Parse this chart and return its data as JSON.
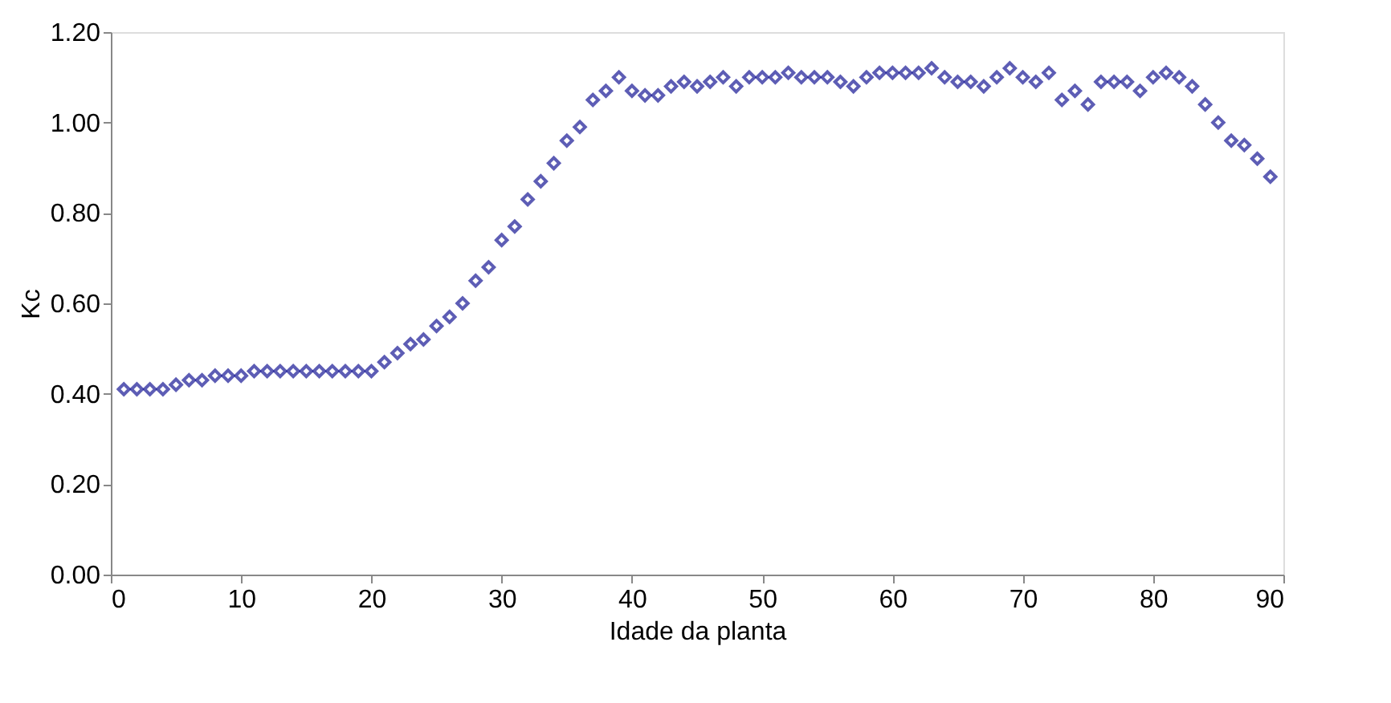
{
  "chart_data": {
    "type": "scatter",
    "xlabel": "Idade da planta",
    "ylabel": "Kc",
    "x": [
      1,
      2,
      3,
      4,
      5,
      6,
      7,
      8,
      9,
      10,
      11,
      12,
      13,
      14,
      15,
      16,
      17,
      18,
      19,
      20,
      21,
      22,
      23,
      24,
      25,
      26,
      27,
      28,
      29,
      30,
      31,
      32,
      33,
      34,
      35,
      36,
      37,
      38,
      39,
      40,
      41,
      42,
      43,
      44,
      45,
      46,
      47,
      48,
      49,
      50,
      51,
      52,
      53,
      54,
      55,
      56,
      57,
      58,
      59,
      60,
      61,
      62,
      63,
      64,
      65,
      66,
      67,
      68,
      69,
      70,
      71,
      72,
      73,
      74,
      75,
      76,
      77,
      78,
      79,
      80,
      81,
      82,
      83,
      84,
      85,
      86,
      87,
      88,
      89
    ],
    "series": [
      {
        "color": "#1a1a96",
        "values": [
          0.41,
          0.41,
          0.41,
          0.41,
          0.42,
          0.43,
          0.43,
          0.44,
          0.44,
          0.44,
          0.45,
          0.45,
          0.45,
          0.45,
          0.45,
          0.45,
          0.45,
          0.45,
          0.45,
          0.45,
          0.47,
          0.49,
          0.51,
          0.52,
          0.55,
          0.57,
          0.6,
          0.65,
          0.68,
          0.74,
          0.77,
          0.83,
          0.87,
          0.91,
          0.96,
          0.99,
          1.05,
          1.07,
          1.1,
          1.07,
          1.06,
          1.06,
          1.08,
          1.09,
          1.08,
          1.09,
          1.1,
          1.08,
          1.1,
          1.1,
          1.1,
          1.11,
          1.1,
          1.1,
          1.1,
          1.09,
          1.08,
          1.1,
          1.11,
          1.11,
          1.11,
          1.11,
          1.12,
          1.1,
          1.09,
          1.09,
          1.08,
          1.1,
          1.12,
          1.1,
          1.09,
          1.11,
          1.05,
          1.07,
          1.04,
          1.09,
          1.09,
          1.09,
          1.07,
          1.1,
          1.11,
          1.1,
          1.08,
          1.04,
          1.0,
          0.96,
          0.95,
          0.92,
          0.88
        ]
      }
    ],
    "marker": "diamond",
    "grid": false,
    "legend": false,
    "xlim": [
      0,
      90
    ],
    "xticks": [
      0,
      10,
      20,
      30,
      40,
      50,
      60,
      70,
      80,
      90
    ],
    "ylim": [
      0,
      1.2
    ],
    "yticks": [
      {
        "value": 0,
        "label": "0.00"
      },
      {
        "value": 0.2,
        "label": "0.20"
      },
      {
        "value": 0.4,
        "label": "0.40"
      },
      {
        "value": 0.6,
        "label": "0.60"
      },
      {
        "value": 0.8,
        "label": "0.80"
      },
      {
        "value": 1.0,
        "label": "1.00"
      },
      {
        "value": 1.2,
        "label": "1.20"
      }
    ]
  }
}
